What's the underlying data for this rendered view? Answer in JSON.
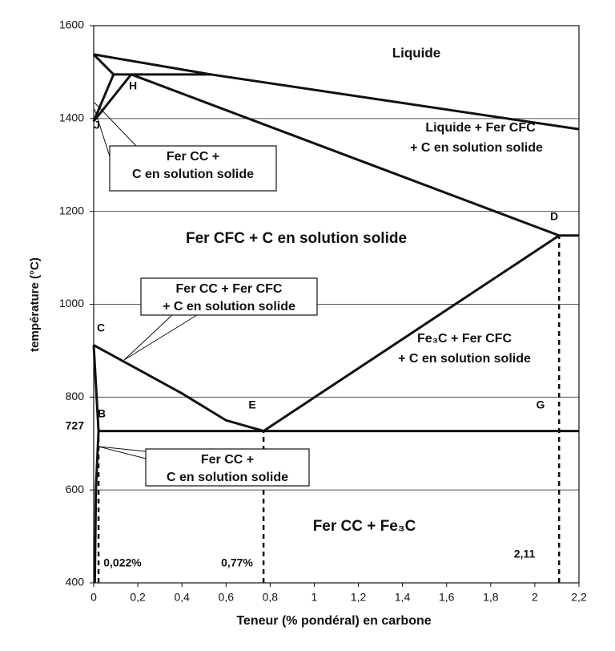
{
  "chart_data": {
    "type": "line",
    "x_label": "Teneur (% pondéral) en carbone",
    "y_label": "température (°C)",
    "xlim": [
      0,
      2.2
    ],
    "ylim": [
      400,
      1600
    ],
    "xticks": [
      0,
      {
        "value": 0.2,
        "label": "0,2"
      },
      {
        "value": 0.4,
        "label": "0,4"
      },
      {
        "value": 0.6,
        "label": "0,6"
      },
      {
        "value": 0.8,
        "label": "0,8"
      },
      1,
      {
        "value": 1.2,
        "label": "1,2"
      },
      {
        "value": 1.4,
        "label": "1,4"
      },
      {
        "value": 1.6,
        "label": "1,6"
      },
      {
        "value": 1.8,
        "label": "1,8"
      },
      2,
      {
        "value": 2.2,
        "label": "2,2"
      }
    ],
    "yticks": [
      400,
      600,
      800,
      1000,
      1200,
      1400,
      1600
    ],
    "eutectoid_temperature": 727,
    "grid": true,
    "color": "#111111",
    "series": [
      {
        "x": [
          0,
          0.53,
          2.2
        ],
        "values": [
          1538,
          1495,
          1377
        ]
      },
      {
        "x": [
          0.09,
          0.53
        ],
        "values": [
          1495,
          1495
        ]
      },
      {
        "x": [
          0,
          0.09
        ],
        "values": [
          1538,
          1495
        ]
      },
      {
        "x": [
          0,
          0.09
        ],
        "values": [
          1394,
          1495
        ]
      },
      {
        "x": [
          0,
          0.17
        ],
        "values": [
          1394,
          1495
        ]
      },
      {
        "x": [
          0.17,
          2.11
        ],
        "values": [
          1495,
          1148
        ]
      },
      {
        "x": [
          2.11,
          2.2
        ],
        "values": [
          1148,
          1148
        ]
      },
      {
        "x": [
          0,
          0.2,
          0.4,
          0.6,
          0.77
        ],
        "values": [
          912,
          860,
          808,
          750,
          727
        ]
      },
      {
        "x": [
          0.77,
          2.11
        ],
        "values": [
          727,
          1148
        ]
      },
      {
        "x": [
          0.022,
          2.2
        ],
        "values": [
          727,
          727
        ]
      },
      {
        "x": [
          0,
          0.022
        ],
        "values": [
          912,
          727
        ]
      },
      {
        "x": [
          0.022,
          0.01,
          0.005
        ],
        "values": [
          727,
          600,
          400
        ]
      },
      {
        "x": [
          0.022,
          0.022
        ],
        "values": [
          400,
          727
        ],
        "dashed": true
      },
      {
        "x": [
          0.77,
          0.77
        ],
        "values": [
          400,
          727
        ],
        "dashed": true
      },
      {
        "x": [
          2.11,
          2.11
        ],
        "values": [
          400,
          1148
        ],
        "dashed": true
      }
    ],
    "annotations": [
      "Liquide",
      "Liquide + Fer CFC",
      "+ C en solution solide",
      "Fer CFC + C en solution solide",
      "Fe₃C + Fer CFC",
      "+ C en solution solide",
      "Fer CC + Fe₃C"
    ],
    "points": [
      "J",
      "H",
      "D",
      "C",
      "E",
      "G",
      "B"
    ],
    "composition_labels": [
      "0,022%",
      "0,77%",
      "2,11"
    ],
    "callouts": [
      [
        "Fer CC +",
        "C en solution solide"
      ],
      [
        "Fer CC +  Fer CFC",
        "+ C en solution solide"
      ],
      [
        "Fer CC +",
        "C en solution solide"
      ]
    ]
  }
}
